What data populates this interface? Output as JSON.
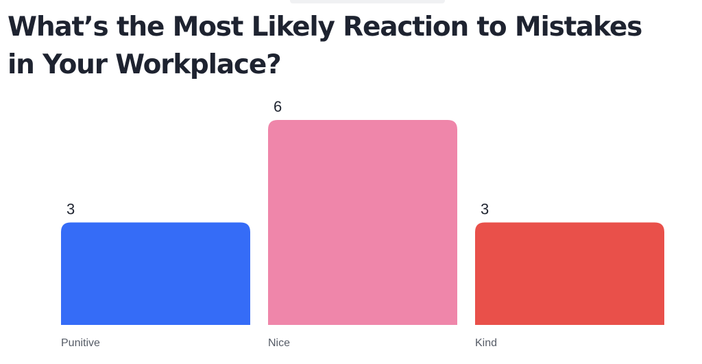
{
  "chart_data": {
    "type": "bar",
    "title": "What’s the Most Likely Reaction to Mistakes in Your Workplace?",
    "categories": [
      "Punitive",
      "Nice",
      "Kind"
    ],
    "values": [
      3,
      6,
      3
    ],
    "colors": [
      "#356cf7",
      "#ef86aa",
      "#e9504a"
    ],
    "ylim": [
      0,
      6
    ],
    "grid": false,
    "legend": "none",
    "xlabel": "",
    "ylabel": ""
  }
}
